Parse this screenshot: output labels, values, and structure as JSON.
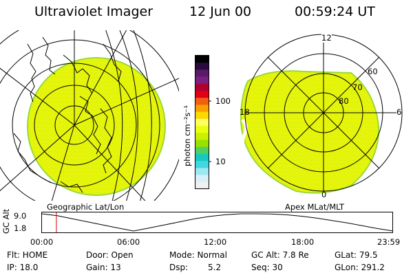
{
  "header": {
    "instrument": "Ultraviolet Imager",
    "date": "12 Jun 00",
    "time": "00:59:24 UT"
  },
  "left_panel": {
    "caption": "Geographic Lat/Lon"
  },
  "right_panel": {
    "caption": "Apex MLat/MLT",
    "mlt_labels": [
      "12",
      "6",
      "18",
      "0"
    ],
    "mlat_labels": [
      "60",
      "70",
      "80"
    ]
  },
  "colorbar": {
    "unit_label": "photon cm⁻²s⁻¹",
    "ticks": [
      "100",
      "10"
    ],
    "colors": [
      "#000000",
      "#2a0a3c",
      "#5a1a6a",
      "#7a2080",
      "#b00030",
      "#e00018",
      "#f06010",
      "#f8a000",
      "#ffd800",
      "#ffff60",
      "#e8ff10",
      "#c8f000",
      "#98e000",
      "#50d060",
      "#18c8c0",
      "#40d8e0",
      "#a0e8f0",
      "#d8f0f8",
      "#f0f0f0"
    ]
  },
  "altitude_plot": {
    "ylabel": "GC Alt",
    "yticks": [
      "9.0",
      "1.8"
    ],
    "xticks": [
      "00:00",
      "06:00",
      "12:00",
      "18:00",
      "23:59"
    ],
    "current_time_fraction": 0.041,
    "orbit_series": [
      9.0,
      8.2,
      6.9,
      5.6,
      4.3,
      3.0,
      1.8,
      3.0,
      4.3,
      5.6,
      6.9,
      7.9,
      8.6,
      9.0,
      9.0,
      8.9,
      8.6,
      8.0,
      7.2,
      6.2,
      5.2,
      4.0,
      2.8,
      1.8
    ]
  },
  "info": {
    "filter": "Flt: HOME",
    "ip": "IP: 18.0",
    "door": "Door: Open",
    "gain": "Gain: 13",
    "mode": "Mode: Normal",
    "dsp_label": "Dsp:",
    "dsp_value": "5.2",
    "gc_alt": "GC Alt: 7.8 Re",
    "seq": "Seq: 30",
    "glat": "GLat:  79.5",
    "glon": "GLon: 291.2"
  },
  "colors": {
    "aurora_fill": "#e6f50a",
    "aurora_edge": "#9ad83a",
    "grid_line": "#000000",
    "time_marker": "#d00000"
  }
}
